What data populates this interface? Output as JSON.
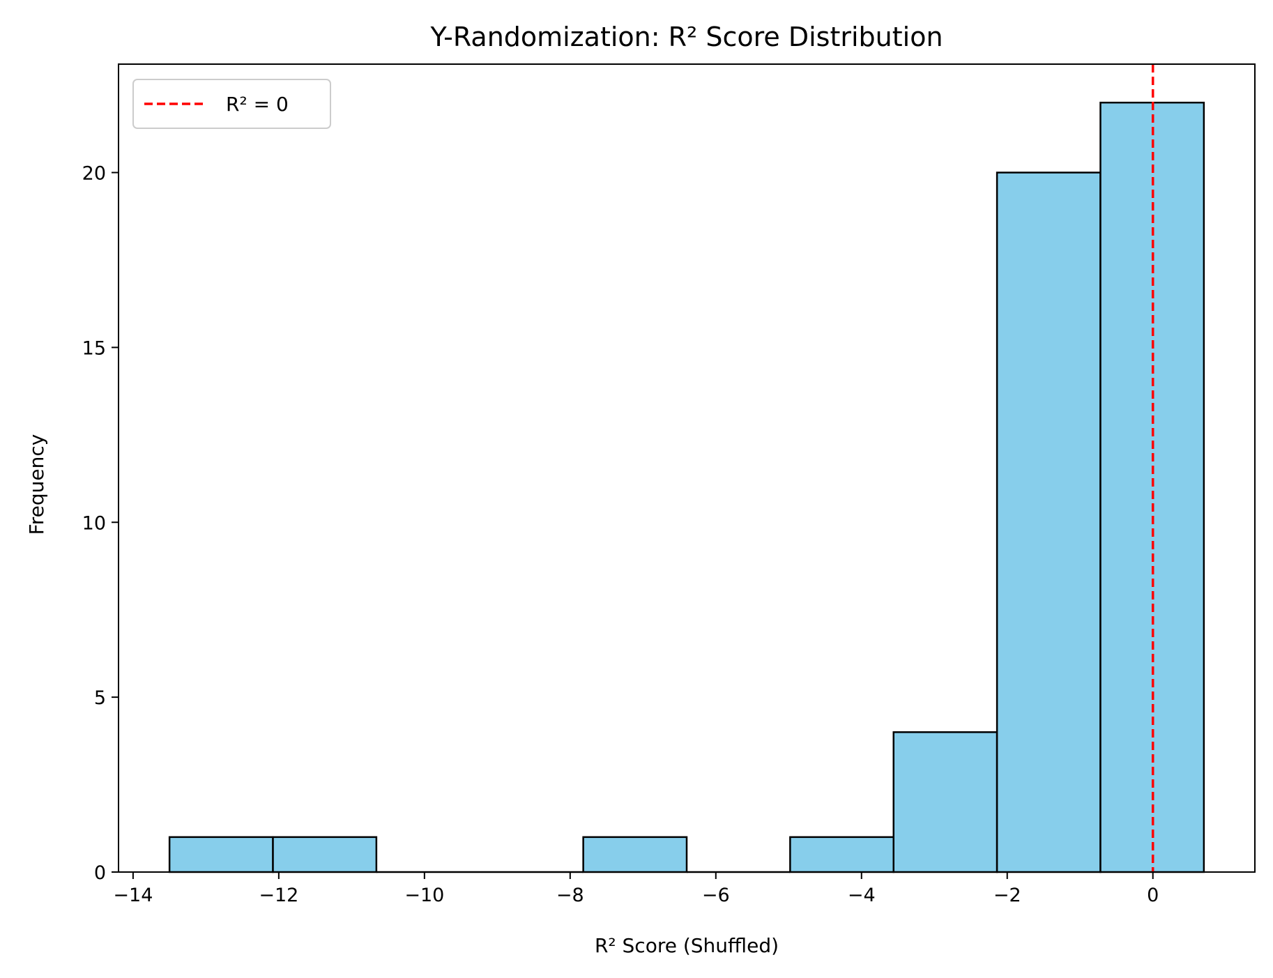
{
  "chart_data": {
    "type": "bar",
    "title": "Y-Randomization: R² Score Distribution",
    "xlabel": "R² Score (Shuffled)",
    "ylabel": "Frequency",
    "xlim": [
      -14.2,
      1.4
    ],
    "ylim": [
      0,
      23.1
    ],
    "bins": [
      {
        "x0": -13.5,
        "x1": -12.08,
        "count": 1
      },
      {
        "x0": -12.08,
        "x1": -10.66,
        "count": 1
      },
      {
        "x0": -10.66,
        "x1": -9.24,
        "count": 0
      },
      {
        "x0": -9.24,
        "x1": -7.82,
        "count": 0
      },
      {
        "x0": -7.82,
        "x1": -6.4,
        "count": 1
      },
      {
        "x0": -6.4,
        "x1": -4.98,
        "count": 0
      },
      {
        "x0": -4.98,
        "x1": -3.56,
        "count": 1
      },
      {
        "x0": -3.56,
        "x1": -2.14,
        "count": 4
      },
      {
        "x0": -2.14,
        "x1": -0.72,
        "count": 20
      },
      {
        "x0": -0.72,
        "x1": 0.7,
        "count": 22
      }
    ],
    "xticks": [
      {
        "value": -14,
        "label": "−14"
      },
      {
        "value": -12,
        "label": "−12"
      },
      {
        "value": -10,
        "label": "−10"
      },
      {
        "value": -8,
        "label": "−8"
      },
      {
        "value": -6,
        "label": "−6"
      },
      {
        "value": -4,
        "label": "−4"
      },
      {
        "value": -2,
        "label": "−2"
      },
      {
        "value": 0,
        "label": "0"
      }
    ],
    "yticks": [
      {
        "value": 0,
        "label": "0"
      },
      {
        "value": 5,
        "label": "5"
      },
      {
        "value": 10,
        "label": "10"
      },
      {
        "value": 15,
        "label": "15"
      },
      {
        "value": 20,
        "label": "20"
      }
    ],
    "reference_line": {
      "x": 0,
      "label": "R² = 0",
      "color": "#ff0000",
      "style": "dashed"
    },
    "legend": {
      "placement": "upper-left"
    },
    "bar_color": "#87ceeb",
    "edge_color": "#000000",
    "grid": false
  }
}
